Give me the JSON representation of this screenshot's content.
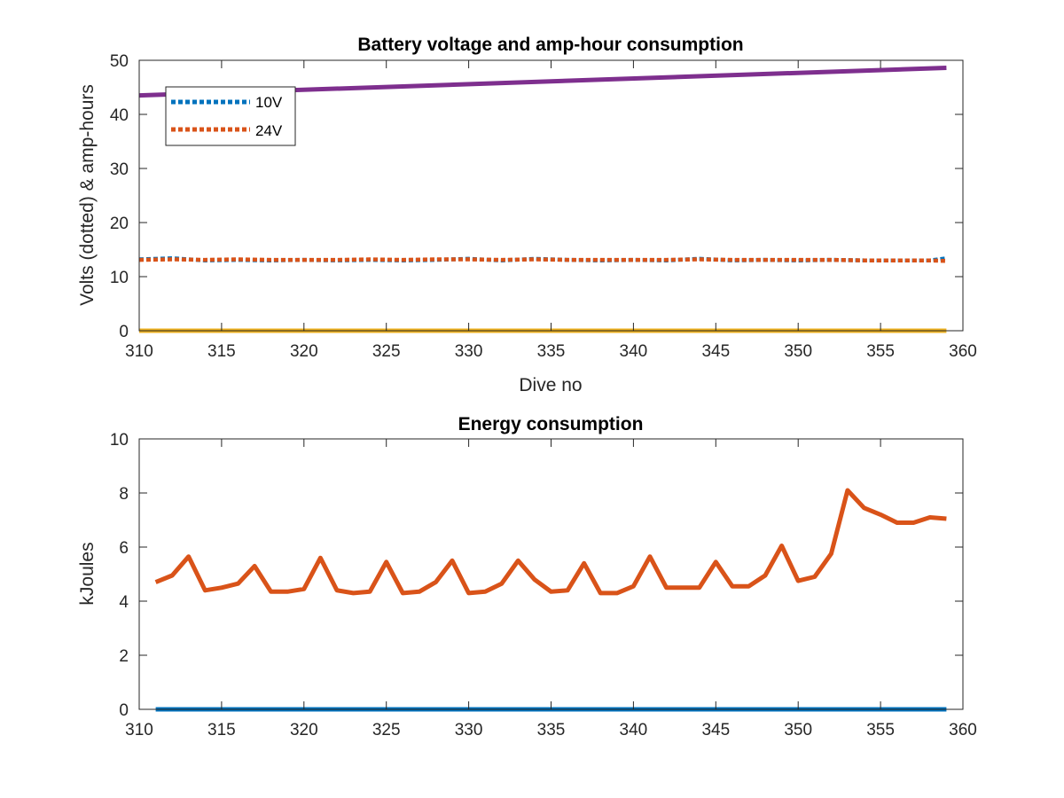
{
  "chart_data": [
    {
      "type": "line",
      "title": "Battery voltage and amp-hour consumption",
      "xlabel": "Dive no",
      "ylabel": "Volts (dotted) & amp-hours",
      "xlim": [
        310,
        360
      ],
      "ylim": [
        0,
        50
      ],
      "xticks": [
        310,
        315,
        320,
        325,
        330,
        335,
        340,
        345,
        350,
        355,
        360
      ],
      "yticks": [
        0,
        10,
        20,
        30,
        40,
        50
      ],
      "grid": false,
      "legend": "top-left",
      "series": [
        {
          "name": "10V",
          "color": "#0072BD",
          "style": "dotted",
          "x": [
            310,
            312,
            314,
            316,
            318,
            320,
            322,
            324,
            326,
            328,
            330,
            332,
            334,
            336,
            338,
            340,
            342,
            344,
            346,
            348,
            350,
            352,
            354,
            356,
            358,
            359
          ],
          "y": [
            13.2,
            13.4,
            13.0,
            13.1,
            13.0,
            13.1,
            13.0,
            13.1,
            13.0,
            13.1,
            13.3,
            13.0,
            13.3,
            13.1,
            13.0,
            13.1,
            13.0,
            13.3,
            13.0,
            13.1,
            13.0,
            13.1,
            13.0,
            13.0,
            13.0,
            13.4
          ]
        },
        {
          "name": "24V",
          "color": "#D95319",
          "style": "dotted",
          "x": [
            310,
            312,
            314,
            316,
            318,
            320,
            322,
            324,
            326,
            328,
            330,
            332,
            334,
            336,
            338,
            340,
            342,
            344,
            346,
            348,
            350,
            352,
            354,
            356,
            358,
            359
          ],
          "y": [
            13.1,
            13.2,
            13.1,
            13.2,
            13.1,
            13.1,
            13.1,
            13.2,
            13.1,
            13.2,
            13.2,
            13.1,
            13.2,
            13.1,
            13.1,
            13.1,
            13.1,
            13.2,
            13.1,
            13.1,
            13.1,
            13.1,
            13.0,
            13.0,
            13.0,
            12.9
          ]
        },
        {
          "color": "#7E2F8E",
          "style": "solid",
          "x": [
            310,
            359
          ],
          "y": [
            43.5,
            48.6
          ]
        },
        {
          "color": "#EDB120",
          "style": "solid",
          "x": [
            310,
            359
          ],
          "y": [
            0,
            0
          ]
        }
      ]
    },
    {
      "type": "line",
      "title": "Energy consumption",
      "xlabel": "",
      "ylabel": "kJoules",
      "xlim": [
        310,
        360
      ],
      "ylim": [
        0,
        10
      ],
      "xticks": [
        310,
        315,
        320,
        325,
        330,
        335,
        340,
        345,
        350,
        355,
        360
      ],
      "yticks": [
        0,
        2,
        4,
        6,
        8,
        10
      ],
      "grid": false,
      "series": [
        {
          "color": "#D95319",
          "style": "solid",
          "x": [
            311,
            312,
            313,
            314,
            315,
            316,
            317,
            318,
            319,
            320,
            321,
            322,
            323,
            324,
            325,
            326,
            327,
            328,
            329,
            330,
            331,
            332,
            333,
            334,
            335,
            336,
            337,
            338,
            339,
            340,
            341,
            342,
            343,
            344,
            345,
            346,
            347,
            348,
            349,
            350,
            351,
            352,
            353,
            354,
            355,
            356,
            357,
            358,
            359
          ],
          "y": [
            4.7,
            4.95,
            5.65,
            4.4,
            4.5,
            4.65,
            5.3,
            4.35,
            4.35,
            4.45,
            5.6,
            4.4,
            4.3,
            4.35,
            5.45,
            4.3,
            4.35,
            4.7,
            5.5,
            4.3,
            4.35,
            4.65,
            5.5,
            4.8,
            4.35,
            4.4,
            5.4,
            4.3,
            4.3,
            4.55,
            5.65,
            4.5,
            4.5,
            4.5,
            5.45,
            4.55,
            4.55,
            4.95,
            6.05,
            4.75,
            4.9,
            5.75,
            8.1,
            7.45,
            7.2,
            6.9,
            6.9,
            7.1,
            7.05
          ]
        },
        {
          "color": "#0072BD",
          "style": "solid",
          "x": [
            311,
            359
          ],
          "y": [
            0,
            0
          ]
        }
      ]
    }
  ]
}
